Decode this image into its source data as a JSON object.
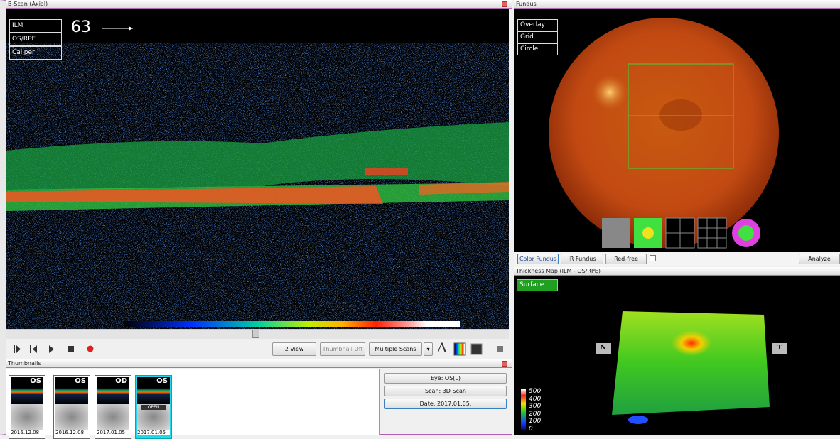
{
  "bscan": {
    "title": "B-Scan (Axial)",
    "layers": [
      "ILM",
      "OS/RPE",
      "Caliper"
    ],
    "slice": 63,
    "toolbar": [
      "2 View",
      "Thumbnail Off",
      "Multiple Scans",
      "A"
    ]
  },
  "thumbnails": {
    "title": "Thumbnails",
    "items": [
      {
        "eye": "OS",
        "date": "2016.12.08"
      },
      {
        "eye": "OS",
        "date": "2016.12.08"
      },
      {
        "eye": "OD",
        "date": "2017.01.05"
      },
      {
        "eye": "OS",
        "date": "2017.01.05",
        "badge": "OPEN"
      }
    ],
    "info": [
      "Eye: OS(L)",
      "Scan: 3D Scan",
      "Date: 2017.01.05."
    ]
  },
  "fundus": {
    "title": "Fundus",
    "overlays": [
      "Overlay",
      "Grid",
      "Circle"
    ],
    "modes": [
      "Color Fundus",
      "IR Fundus",
      "Red-free"
    ],
    "action": "Analyze"
  },
  "thickness": {
    "title": "Thickness Map  (ILM - OS/RPE)",
    "view": "Surface",
    "nasal": "N",
    "temporal": "T",
    "scale": [
      500,
      400,
      300,
      200,
      100,
      0
    ]
  }
}
